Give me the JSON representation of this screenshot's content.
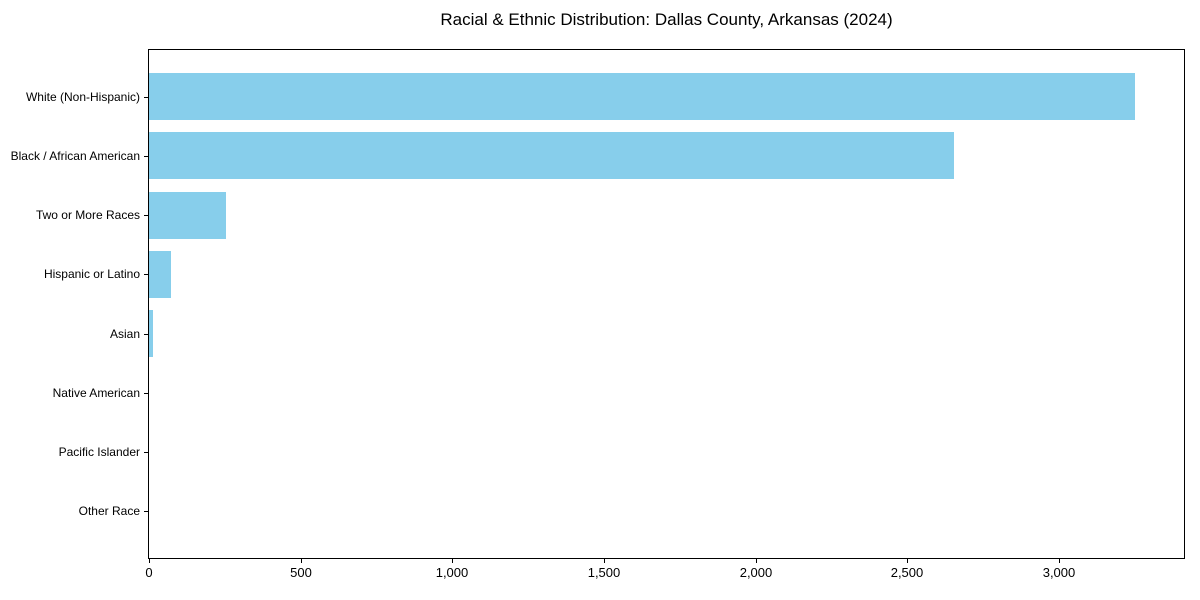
{
  "window": {
    "background_color": "#ffffff"
  },
  "chart_data": {
    "type": "bar",
    "orientation": "horizontal",
    "title": "Racial & Ethnic Distribution: Dallas County, Arkansas (2024)",
    "categories": [
      "White (Non-Hispanic)",
      "Black / African American",
      "Two or More Races",
      "Hispanic or Latino",
      "Asian",
      "Native American",
      "Pacific Islander",
      "Other Race"
    ],
    "values": [
      3250,
      2655,
      255,
      72,
      13,
      0,
      0,
      0
    ],
    "xlabel": "",
    "ylabel": "",
    "xlim": [
      0,
      3412
    ],
    "xticks": [
      0,
      500,
      1000,
      1500,
      2000,
      2500,
      3000
    ],
    "xtick_labels": [
      "0",
      "500",
      "1,000",
      "1,500",
      "2,000",
      "2,500",
      "3,000"
    ],
    "bar_color": "#87CEEB",
    "axis_color": "#000000",
    "text_color": "#000000",
    "plot_background": "#ffffff",
    "grid": false,
    "legend": null,
    "bar_height_fraction": 0.8,
    "category_axis_margin_units": 0.79
  }
}
